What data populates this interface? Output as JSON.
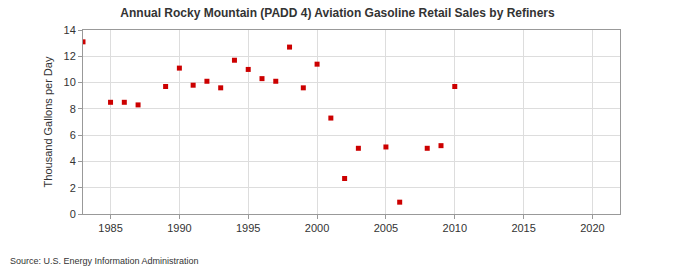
{
  "chart_data": {
    "type": "scatter",
    "title": "Annual Rocky Mountain (PADD 4) Aviation Gasoline Retail Sales by Refiners",
    "y_label": "Thousand Gallons per Day",
    "annotations": [
      "Source: U.S. Energy Information Administration"
    ],
    "x": [
      1983,
      1985,
      1986,
      1987,
      1989,
      1990,
      1991,
      1992,
      1993,
      1994,
      1995,
      1996,
      1997,
      1998,
      1999,
      2000,
      2001,
      2002,
      2003,
      2005,
      2006,
      2008,
      2009,
      2010
    ],
    "values": [
      13.1,
      8.5,
      8.5,
      8.3,
      9.7,
      11.1,
      9.8,
      10.1,
      9.6,
      11.7,
      11.0,
      10.3,
      10.1,
      12.7,
      9.6,
      11.4,
      7.3,
      2.7,
      5.0,
      5.1,
      0.9,
      5.0,
      5.2,
      9.7
    ],
    "color": "#cc0000",
    "marker": "square",
    "xlim": [
      1983,
      2022
    ],
    "xticks": [
      1985,
      1990,
      1995,
      2000,
      2005,
      2010,
      2015,
      2020
    ],
    "ylim": [
      0,
      14
    ],
    "yticks": [
      0,
      2,
      4,
      6,
      8,
      10,
      12,
      14
    ],
    "grid": true
  }
}
